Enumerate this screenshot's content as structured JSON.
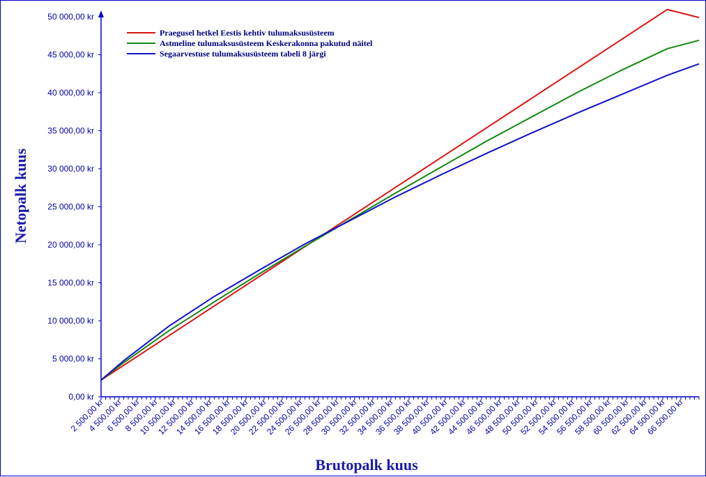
{
  "chart_data": {
    "type": "line",
    "xlabel": "Brutopalk kuus",
    "ylabel": "Netopalk kuus",
    "ylim": [
      0,
      50000
    ],
    "ytick_values": [
      0,
      5000,
      10000,
      15000,
      20000,
      25000,
      30000,
      35000,
      40000,
      45000,
      50000
    ],
    "ytick_labels": [
      "0,00 kr",
      "5 000,00 kr",
      "10 000,00 kr",
      "15 000,00 kr",
      "20 000,00 kr",
      "25 000,00 kr",
      "30 000,00 kr",
      "35 000,00 kr",
      "40 000,00 kr",
      "45 000,00 kr",
      "50 000,00 kr"
    ],
    "xlim": [
      2500,
      68500
    ],
    "xtick_values": [
      2500,
      4500,
      6500,
      8500,
      10500,
      12500,
      14500,
      16500,
      18500,
      20500,
      22500,
      24500,
      26500,
      28500,
      30500,
      32500,
      34500,
      36500,
      38500,
      40500,
      42500,
      44500,
      46500,
      48500,
      50500,
      52500,
      54500,
      56500,
      58500,
      60500,
      62500,
      64500,
      66500
    ],
    "xtick_labels": [
      "2 500,00 kr",
      "4 500,00 kr",
      "6 500,00 kr",
      "8 500,00 kr",
      "10 500,00 kr",
      "12 500,00 kr",
      "14 500,00 kr",
      "16 500,00 kr",
      "18 500,00 kr",
      "20 500,00 kr",
      "22 500,00 kr",
      "24 500,00 kr",
      "26 500,00 kr",
      "28 500,00 kr",
      "30 500,00 kr",
      "32 500,00 kr",
      "34 500,00 kr",
      "36 500,00 kr",
      "38 500,00 kr",
      "40 500,00 kr",
      "42 500,00 kr",
      "44 500,00 kr",
      "46 500,00 kr",
      "48 500,00 kr",
      "50 500,00 kr",
      "52 500,00 kr",
      "54 500,00 kr",
      "56 500,00 kr",
      "58 500,00 kr",
      "60 500,00 kr",
      "62 500,00 kr",
      "64 500,00 kr",
      "66 500,00 kr"
    ],
    "grid": false,
    "legend_position": "top-left",
    "series": [
      {
        "name": "Praegusel hetkel Eestis kehtiv tulumaksusüsteem",
        "color": "#dd1111",
        "x": [
          2500,
          5000,
          10000,
          15000,
          20000,
          25000,
          30000,
          35000,
          40000,
          45000,
          50000,
          55000,
          60000,
          65000,
          68500
        ],
        "y": [
          2200,
          4150,
          8050,
          11950,
          15850,
          19750,
          23650,
          27550,
          31450,
          35350,
          39250,
          43150,
          47050,
          50950,
          49900
        ]
      },
      {
        "name": "Astmeline tulumaksusüsteem Keskerakonna pakutud näitel",
        "color": "#118811",
        "x": [
          2500,
          5000,
          10000,
          15000,
          20000,
          25000,
          30000,
          35000,
          40000,
          45000,
          50000,
          55000,
          60000,
          65000,
          68500
        ],
        "y": [
          2200,
          4500,
          8700,
          12500,
          16200,
          19800,
          23300,
          26800,
          30200,
          33600,
          36800,
          40000,
          43000,
          45800,
          46900
        ]
      },
      {
        "name": "Segaarvestuse tulumaksusüsteem tabeli 8 järgi",
        "color": "#1111cc",
        "x": [
          2500,
          5000,
          10000,
          15000,
          20000,
          25000,
          30000,
          35000,
          40000,
          45000,
          50000,
          55000,
          60000,
          65000,
          68500
        ],
        "y": [
          2200,
          4750,
          9300,
          13200,
          16700,
          20100,
          23200,
          26300,
          29200,
          32000,
          34700,
          37300,
          39800,
          42300,
          43800
        ]
      }
    ]
  }
}
